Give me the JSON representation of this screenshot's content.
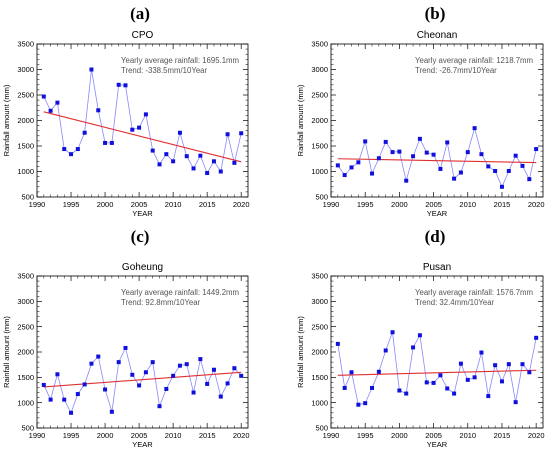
{
  "panel_letters": [
    "(a)",
    "(b)",
    "(c)",
    "(d)"
  ],
  "chart_data": [
    {
      "type": "line",
      "title": "CPO",
      "xlabel": "YEAR",
      "ylabel": "Rainfall amount (mm)",
      "xlim": [
        1990,
        2021
      ],
      "ylim": [
        500,
        3500
      ],
      "xticks": [
        1990,
        1995,
        2000,
        2005,
        2010,
        2015,
        2020
      ],
      "yticks": [
        500,
        1000,
        1500,
        2000,
        2500,
        3000,
        3500
      ],
      "info_lines": [
        "Yearly average rainfall: 1695.1mm",
        "Trend:   -338.5mm/10Year"
      ],
      "x": [
        1991,
        1992,
        1993,
        1994,
        1995,
        1996,
        1997,
        1998,
        1999,
        2000,
        2001,
        2002,
        2003,
        2004,
        2005,
        2006,
        2007,
        2008,
        2009,
        2010,
        2011,
        2012,
        2013,
        2014,
        2015,
        2016,
        2017,
        2018,
        2019,
        2020
      ],
      "values": [
        2470,
        2190,
        2350,
        1440,
        1340,
        1440,
        1760,
        3000,
        2200,
        1560,
        1560,
        2700,
        2690,
        1820,
        1860,
        2120,
        1410,
        1140,
        1340,
        1200,
        1760,
        1300,
        1060,
        1310,
        970,
        1200,
        1000,
        1730,
        1170,
        1750
      ],
      "trend": {
        "x": [
          1991,
          2020
        ],
        "y": [
          2170,
          1190
        ]
      },
      "colors": {
        "line": "#8888ff",
        "marker": "#1010dd",
        "trend": "#e03030"
      }
    },
    {
      "type": "line",
      "title": "Cheonan",
      "xlabel": "YEAR",
      "ylabel": "Rainfall amount (mm)",
      "xlim": [
        1990,
        2021
      ],
      "ylim": [
        500,
        3500
      ],
      "xticks": [
        1990,
        1995,
        2000,
        2005,
        2010,
        2015,
        2020
      ],
      "yticks": [
        500,
        1000,
        1500,
        2000,
        2500,
        3000,
        3500
      ],
      "info_lines": [
        "Yearly average rainfall: 1218.7mm",
        "Trend:   -26.7mm/10Year"
      ],
      "x": [
        1991,
        1992,
        1993,
        1994,
        1995,
        1996,
        1997,
        1998,
        1999,
        2000,
        2001,
        2002,
        2003,
        2004,
        2005,
        2006,
        2007,
        2008,
        2009,
        2010,
        2011,
        2012,
        2013,
        2014,
        2015,
        2016,
        2017,
        2018,
        2019,
        2020
      ],
      "values": [
        1120,
        930,
        1080,
        1180,
        1590,
        960,
        1260,
        1580,
        1380,
        1390,
        820,
        1300,
        1640,
        1370,
        1330,
        1050,
        1570,
        860,
        980,
        1380,
        1850,
        1340,
        1100,
        1010,
        700,
        1010,
        1310,
        1110,
        850,
        1440
      ],
      "trend": {
        "x": [
          1991,
          2020
        ],
        "y": [
          1250,
          1175
        ]
      },
      "colors": {
        "line": "#8888ff",
        "marker": "#1010dd",
        "trend": "#e03030"
      }
    },
    {
      "type": "line",
      "title": "Goheung",
      "xlabel": "YEAR",
      "ylabel": "Rainfall amount (mm)",
      "xlim": [
        1990,
        2021
      ],
      "ylim": [
        500,
        3500
      ],
      "xticks": [
        1990,
        1995,
        2000,
        2005,
        2010,
        2015,
        2020
      ],
      "yticks": [
        500,
        1000,
        1500,
        2000,
        2500,
        3000,
        3500
      ],
      "info_lines": [
        "Yearly average rainfall: 1449.2mm",
        "Trend:   92.8mm/10Year"
      ],
      "x": [
        1991,
        1992,
        1993,
        1994,
        1995,
        1996,
        1997,
        1998,
        1999,
        2000,
        2001,
        2002,
        2003,
        2004,
        2005,
        2006,
        2007,
        2008,
        2009,
        2010,
        2011,
        2012,
        2013,
        2014,
        2015,
        2016,
        2017,
        2018,
        2019,
        2020
      ],
      "values": [
        1350,
        1060,
        1560,
        1060,
        800,
        1170,
        1360,
        1770,
        1910,
        1260,
        820,
        1800,
        2080,
        1550,
        1340,
        1600,
        1800,
        930,
        1270,
        1530,
        1730,
        1760,
        1200,
        1860,
        1370,
        1650,
        1120,
        1380,
        1680,
        1530
      ],
      "trend": {
        "x": [
          1991,
          2020
        ],
        "y": [
          1310,
          1600
        ]
      },
      "colors": {
        "line": "#8888ff",
        "marker": "#1010dd",
        "trend": "#e03030"
      }
    },
    {
      "type": "line",
      "title": "Pusan",
      "xlabel": "YEAR",
      "ylabel": "Rainfall amount (mm)",
      "xlim": [
        1990,
        2021
      ],
      "ylim": [
        500,
        3500
      ],
      "xticks": [
        1990,
        1995,
        2000,
        2005,
        2010,
        2015,
        2020
      ],
      "yticks": [
        500,
        1000,
        1500,
        2000,
        2500,
        3000,
        3500
      ],
      "info_lines": [
        "Yearly average rainfall: 1576.7mm",
        "Trend:   32.4mm/10Year"
      ],
      "x": [
        1991,
        1992,
        1993,
        1994,
        1995,
        1996,
        1997,
        1998,
        1999,
        2000,
        2001,
        2002,
        2003,
        2004,
        2005,
        2006,
        2007,
        2008,
        2009,
        2010,
        2011,
        2012,
        2013,
        2014,
        2015,
        2016,
        2017,
        2018,
        2019,
        2020
      ],
      "values": [
        2160,
        1290,
        1600,
        960,
        990,
        1290,
        1610,
        2030,
        2390,
        1240,
        1180,
        2090,
        2330,
        1400,
        1390,
        1540,
        1280,
        1180,
        1770,
        1450,
        1500,
        1990,
        1130,
        1740,
        1420,
        1760,
        1010,
        1760,
        1600,
        2280
      ],
      "trend": {
        "x": [
          1991,
          2020
        ],
        "y": [
          1540,
          1640
        ]
      },
      "colors": {
        "line": "#8888ff",
        "marker": "#1010dd",
        "trend": "#e03030"
      }
    }
  ]
}
